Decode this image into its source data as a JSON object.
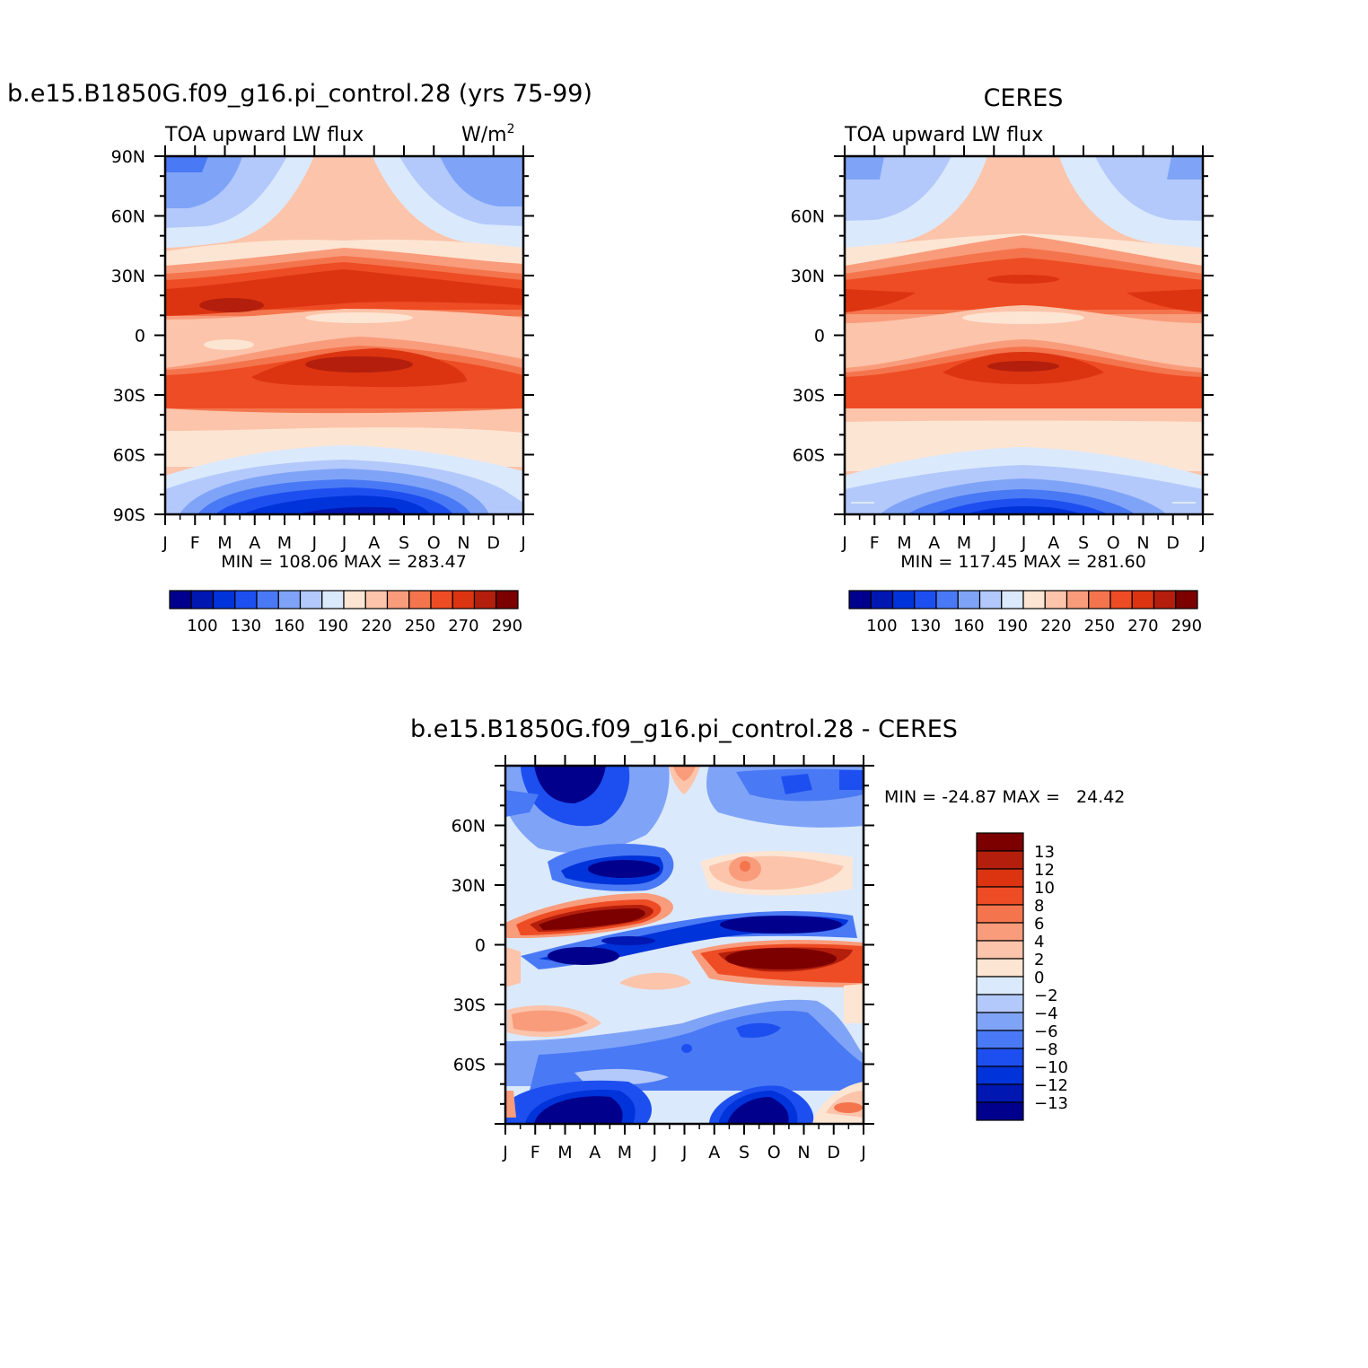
{
  "chart_data": [
    {
      "type": "heatmap",
      "title": "b.e15.B1850G.f09_g16.pi_control.28 (yrs 75-99)",
      "left_string": "TOA upward LW flux",
      "units": "W/m",
      "units_sup": "2",
      "x_ticks": [
        "J",
        "F",
        "M",
        "A",
        "M",
        "J",
        "J",
        "A",
        "S",
        "O",
        "N",
        "D",
        "J"
      ],
      "y_ticks": [
        {
          "label": "90N",
          "lat": 90
        },
        {
          "label": "60N",
          "lat": 60
        },
        {
          "label": "30N",
          "lat": 30
        },
        {
          "label": "0",
          "lat": 0
        },
        {
          "label": "30S",
          "lat": -30
        },
        {
          "label": "60S",
          "lat": -60
        },
        {
          "label": "90S",
          "lat": -90
        }
      ],
      "ylim": [
        -90,
        90
      ],
      "xlim": [
        0,
        12
      ],
      "stats": "MIN =  108.06 MAX =  283.47",
      "min": 108.06,
      "max": 283.47
    },
    {
      "type": "heatmap",
      "title": "CERES",
      "left_string": "TOA upward LW flux",
      "x_ticks": [
        "J",
        "F",
        "M",
        "A",
        "M",
        "J",
        "J",
        "A",
        "S",
        "O",
        "N",
        "D",
        "J"
      ],
      "y_ticks": [
        {
          "label": "60N",
          "lat": 60
        },
        {
          "label": "30N",
          "lat": 30
        },
        {
          "label": "0",
          "lat": 0
        },
        {
          "label": "30S",
          "lat": -30
        },
        {
          "label": "60S",
          "lat": -60
        }
      ],
      "ylim": [
        -90,
        90
      ],
      "xlim": [
        0,
        12
      ],
      "stats": "MIN =  117.45 MAX =  281.60",
      "min": 117.45,
      "max": 281.6
    },
    {
      "type": "heatmap",
      "title": "b.e15.B1850G.f09_g16.pi_control.28  -  CERES",
      "x_ticks": [
        "J",
        "F",
        "M",
        "A",
        "M",
        "J",
        "J",
        "A",
        "S",
        "O",
        "N",
        "D",
        "J"
      ],
      "y_ticks": [
        {
          "label": "60N",
          "lat": 60
        },
        {
          "label": "30N",
          "lat": 30
        },
        {
          "label": "0",
          "lat": 0
        },
        {
          "label": "30S",
          "lat": -30
        },
        {
          "label": "60S",
          "lat": -60
        }
      ],
      "ylim": [
        -90,
        90
      ],
      "xlim": [
        0,
        12
      ],
      "stats": "MIN = -24.87 MAX =   24.42",
      "min": -24.87,
      "max": 24.42
    }
  ],
  "colorbar_abs": {
    "orientation": "horizontal",
    "colors": [
      "#00008c",
      "#0017b2",
      "#0033d9",
      "#1d4ff0",
      "#4a79f5",
      "#7fa4f7",
      "#b3c9fb",
      "#dbe9fc",
      "#fde5d3",
      "#fcc4aa",
      "#f99c7c",
      "#f4754d",
      "#ee4c24",
      "#dc3411",
      "#b31f0c",
      "#7c0000"
    ],
    "labels": [
      "100",
      "130",
      "160",
      "190",
      "220",
      "250",
      "270",
      "290"
    ]
  },
  "colorbar_diff": {
    "orientation": "vertical",
    "colors": [
      "#7c0000",
      "#b31f0c",
      "#dc3411",
      "#ee4c24",
      "#f4754d",
      "#f99c7c",
      "#fcc4aa",
      "#fde5d3",
      "#dbe9fc",
      "#b3c9fb",
      "#7fa4f7",
      "#4a79f5",
      "#1d4ff0",
      "#0033d9",
      "#0017b2",
      "#00008c"
    ],
    "labels": [
      "13",
      "12",
      "10",
      "8",
      "6",
      "4",
      "2",
      "0",
      "−2",
      "−4",
      "−6",
      "−8",
      "−10",
      "−12",
      "−13"
    ]
  }
}
